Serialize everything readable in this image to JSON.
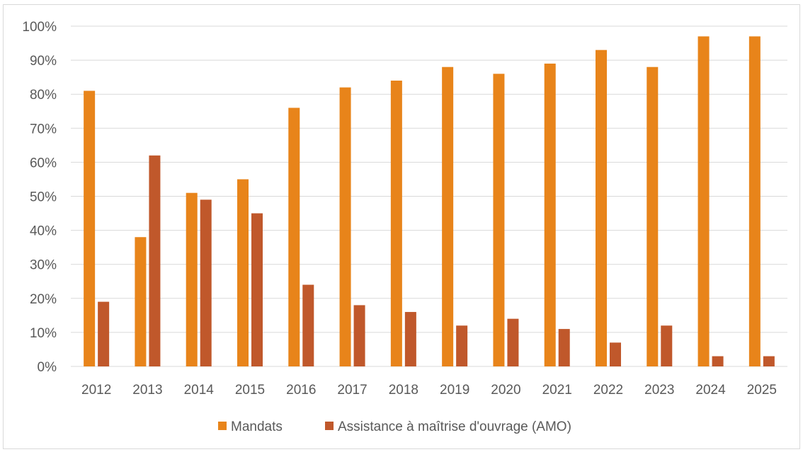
{
  "chart_data": {
    "type": "bar",
    "categories": [
      "2012",
      "2013",
      "2014",
      "2015",
      "2016",
      "2017",
      "2018",
      "2019",
      "2020",
      "2021",
      "2022",
      "2023",
      "2024",
      "2025"
    ],
    "series": [
      {
        "name": "Mandats",
        "color": "#e8841a",
        "values": [
          81,
          38,
          51,
          55,
          76,
          82,
          84,
          88,
          86,
          89,
          93,
          88,
          97,
          97
        ]
      },
      {
        "name": "Assistance à maîtrise d'ouvrage (AMO)",
        "color": "#c0582b",
        "values": [
          19,
          62,
          49,
          45,
          24,
          18,
          16,
          12,
          14,
          11,
          7,
          12,
          3,
          3
        ]
      }
    ],
    "ylim": [
      0,
      100
    ],
    "yticks": [
      "0%",
      "10%",
      "20%",
      "30%",
      "40%",
      "50%",
      "60%",
      "70%",
      "80%",
      "90%",
      "100%"
    ],
    "grid": true,
    "legend_position": "bottom"
  }
}
